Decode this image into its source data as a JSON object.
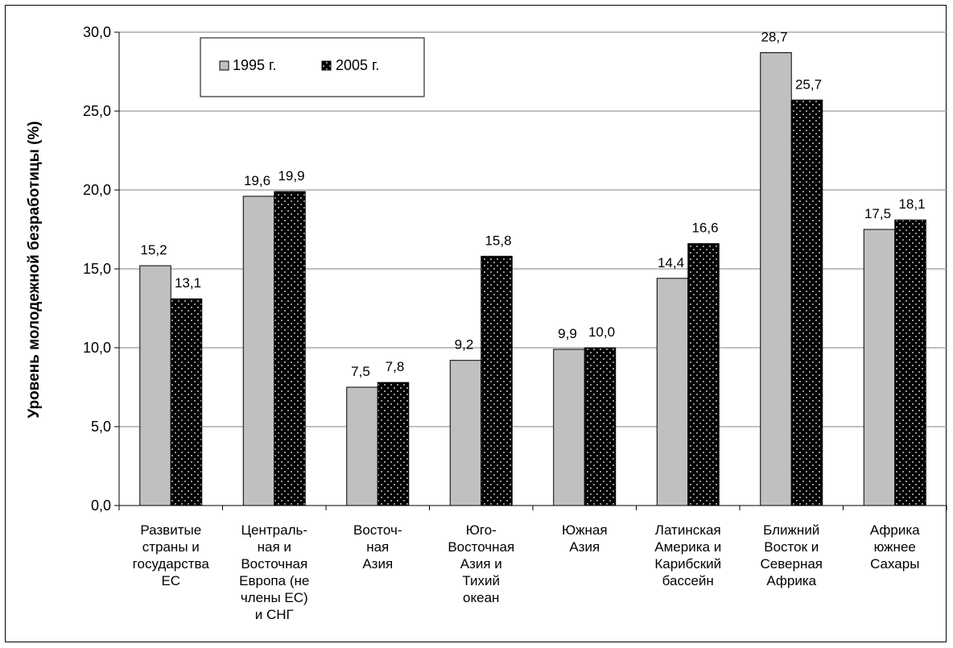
{
  "chart_data": {
    "type": "bar",
    "ylabel": "Уровень молодежной безработицы (%)",
    "ylim": [
      0,
      30
    ],
    "y_ticks": [
      "0,0",
      "5,0",
      "10,0",
      "15,0",
      "20,0",
      "25,0",
      "30,0"
    ],
    "grid": true,
    "legend_position": "top-left",
    "categories": [
      [
        "Развитые",
        "страны  и",
        "государства",
        "ЕС"
      ],
      [
        "Централь-",
        "ная и",
        "Восточная",
        "Европа (не",
        "члены ЕС)",
        "и СНГ"
      ],
      [
        "Восточ-",
        "ная",
        "Азия"
      ],
      [
        "Юго-",
        "Восточная",
        "Азия и",
        "Тихий",
        "океан"
      ],
      [
        "Южная",
        "Азия"
      ],
      [
        "Латинская",
        "Америка и",
        "Карибский",
        "бассейн"
      ],
      [
        "Ближний",
        "Восток и",
        "Северная",
        "Африка"
      ],
      [
        "Африка",
        "южнее",
        "Сахары"
      ]
    ],
    "series": [
      {
        "name": "1995 г.",
        "color": "#c0c0c0",
        "values": [
          15.2,
          19.6,
          7.5,
          9.2,
          9.9,
          14.4,
          28.7,
          17.5
        ],
        "labels": [
          "15,2",
          "19,6",
          "7,5",
          "9,2",
          "9,9",
          "14,4",
          "28,7",
          "17,5"
        ]
      },
      {
        "name": "2005 г.",
        "color": "#000000",
        "pattern": "white-dots",
        "values": [
          13.1,
          19.9,
          7.8,
          15.8,
          10.0,
          16.6,
          25.7,
          18.1
        ],
        "labels": [
          "13,1",
          "19,9",
          "7,8",
          "15,8",
          "10,0",
          "16,6",
          "25,7",
          "18,1"
        ]
      }
    ]
  }
}
